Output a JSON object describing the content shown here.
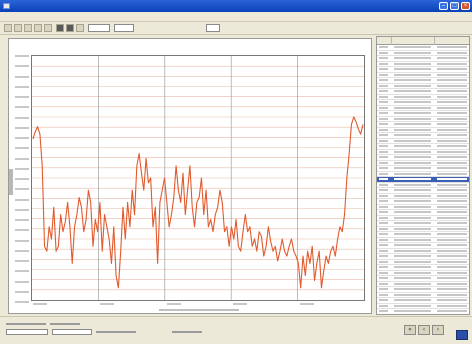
{
  "window": {
    "title": ""
  },
  "menu": {
    "items": [
      "",
      "",
      "",
      "",
      "",
      "",
      ""
    ]
  },
  "chart_data": {
    "type": "line",
    "title": "",
    "xlabel": "",
    "ylabel": "",
    "grid": true,
    "y_gridlines": 24,
    "x_gridlines": 5,
    "series": [
      {
        "color": "#e25a2e",
        "values": [
          0.66,
          0.69,
          0.71,
          0.68,
          0.55,
          0.22,
          0.2,
          0.3,
          0.25,
          0.38,
          0.2,
          0.22,
          0.35,
          0.28,
          0.32,
          0.4,
          0.3,
          0.15,
          0.3,
          0.35,
          0.42,
          0.38,
          0.28,
          0.33,
          0.45,
          0.4,
          0.22,
          0.33,
          0.28,
          0.4,
          0.2,
          0.35,
          0.3,
          0.25,
          0.15,
          0.3,
          0.1,
          0.05,
          0.2,
          0.38,
          0.25,
          0.4,
          0.3,
          0.45,
          0.35,
          0.55,
          0.6,
          0.52,
          0.45,
          0.58,
          0.48,
          0.5,
          0.3,
          0.38,
          0.15,
          0.4,
          0.45,
          0.5,
          0.4,
          0.3,
          0.35,
          0.42,
          0.55,
          0.45,
          0.4,
          0.52,
          0.35,
          0.45,
          0.55,
          0.38,
          0.3,
          0.4,
          0.42,
          0.5,
          0.35,
          0.45,
          0.3,
          0.33,
          0.28,
          0.35,
          0.38,
          0.45,
          0.4,
          0.28,
          0.3,
          0.22,
          0.3,
          0.25,
          0.33,
          0.22,
          0.2,
          0.28,
          0.35,
          0.28,
          0.3,
          0.22,
          0.25,
          0.2,
          0.28,
          0.26,
          0.18,
          0.22,
          0.3,
          0.24,
          0.2,
          0.22,
          0.16,
          0.2,
          0.25,
          0.2,
          0.18,
          0.22,
          0.25,
          0.2,
          0.18,
          0.15,
          0.05,
          0.18,
          0.1,
          0.2,
          0.15,
          0.22,
          0.08,
          0.15,
          0.2,
          0.05,
          0.12,
          0.18,
          0.15,
          0.2,
          0.22,
          0.18,
          0.25,
          0.3,
          0.28,
          0.35,
          0.5,
          0.6,
          0.72,
          0.75,
          0.73,
          0.7,
          0.68,
          0.72
        ]
      }
    ]
  },
  "table": {
    "column_widths": [
      0.16,
      0.46,
      0.38
    ],
    "row_count": 50,
    "selected_row": 24
  }
}
